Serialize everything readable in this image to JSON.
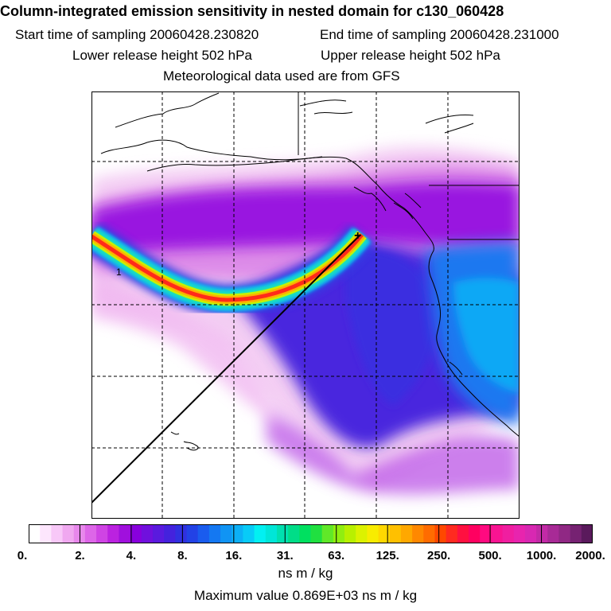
{
  "header": {
    "title": "Column-integrated emission sensitivity in nested domain for c130_060428",
    "start_label": "Start time of sampling 20060428.230820",
    "end_label": "End time of sampling 20060428.231000",
    "lower_label": "Lower release height  502 hPa",
    "upper_label": "Upper release height  502 hPa",
    "met_label": "Meteorological data used are from GFS"
  },
  "map": {
    "plume_label": "1",
    "release_marker": "+"
  },
  "colorbar": {
    "units": "ns m / kg",
    "ticks": [
      "0.",
      "2.",
      "4.",
      "8.",
      "16.",
      "31.",
      "63.",
      "125.",
      "250.",
      "500.",
      "1000.",
      "2000."
    ],
    "colors": [
      "#ffffff",
      "#fde6fd",
      "#f8c8f8",
      "#f0a8f0",
      "#e888ec",
      "#dd66e8",
      "#cf44e4",
      "#bb22e0",
      "#a010dd",
      "#8800dd",
      "#7010dd",
      "#5a1ade",
      "#4422dd",
      "#3030e0",
      "#2242e6",
      "#1a5cee",
      "#1478f2",
      "#1094f4",
      "#0cb0f6",
      "#08cbf7",
      "#02f0f2",
      "#00e6d8",
      "#00e0b0",
      "#00dd88",
      "#00e060",
      "#20e040",
      "#60e828",
      "#90ee10",
      "#b8f000",
      "#dcf200",
      "#f8ec00",
      "#ffd800",
      "#ffc000",
      "#ffa800",
      "#ff8800",
      "#ff6c00",
      "#ff4800",
      "#ff2a20",
      "#ff1040",
      "#ff0060",
      "#ff0a80",
      "#f81492",
      "#f01ea0",
      "#e824ae",
      "#d828b2",
      "#c22aa6",
      "#a82a96",
      "#902884",
      "#762272",
      "#5a1a5c"
    ]
  },
  "footer": {
    "max_label": "Maximum value  0.869E+03 ns m / kg"
  }
}
